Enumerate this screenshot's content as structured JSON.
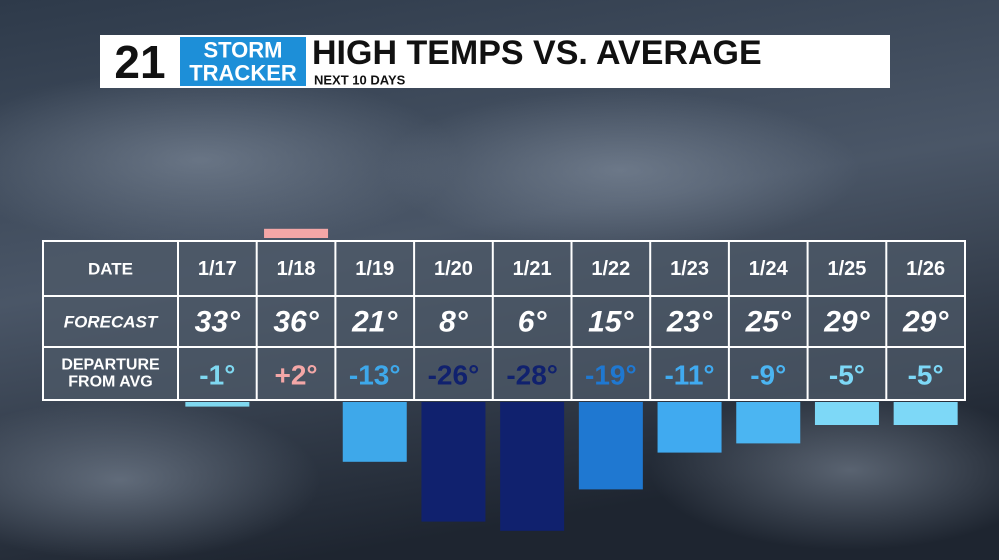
{
  "chart_data": {
    "type": "bar",
    "logo": {
      "number": "21",
      "line1": "STORM",
      "line2": "TRACKER"
    },
    "title": "HIGH TEMPS VS. AVERAGE",
    "subtitle": "NEXT 10 DAYS",
    "row_labels": {
      "date": "DATE",
      "forecast": "FORECAST",
      "departure": [
        "DEPARTURE",
        "FROM AVG"
      ]
    },
    "categories": [
      "1/17",
      "1/18",
      "1/19",
      "1/20",
      "1/21",
      "1/22",
      "1/23",
      "1/24",
      "1/25",
      "1/26"
    ],
    "forecast": [
      "33°",
      "36°",
      "21°",
      "8°",
      "6°",
      "15°",
      "23°",
      "25°",
      "29°",
      "29°"
    ],
    "values": [
      -1,
      2,
      -13,
      -26,
      -28,
      -19,
      -11,
      -9,
      -5,
      -5
    ],
    "value_labels": [
      "-1°",
      "+2°",
      "-13°",
      "-26°",
      "-28°",
      "-19°",
      "-11°",
      "-9°",
      "-5°",
      "-5°"
    ],
    "colors": [
      "#7fd8f0",
      "#f4a7a7",
      "#3ea8ea",
      "#10216e",
      "#10216e",
      "#1f78d1",
      "#40aaf0",
      "#4bb5f2",
      "#7dd8f7",
      "#7dd8f7"
    ]
  }
}
